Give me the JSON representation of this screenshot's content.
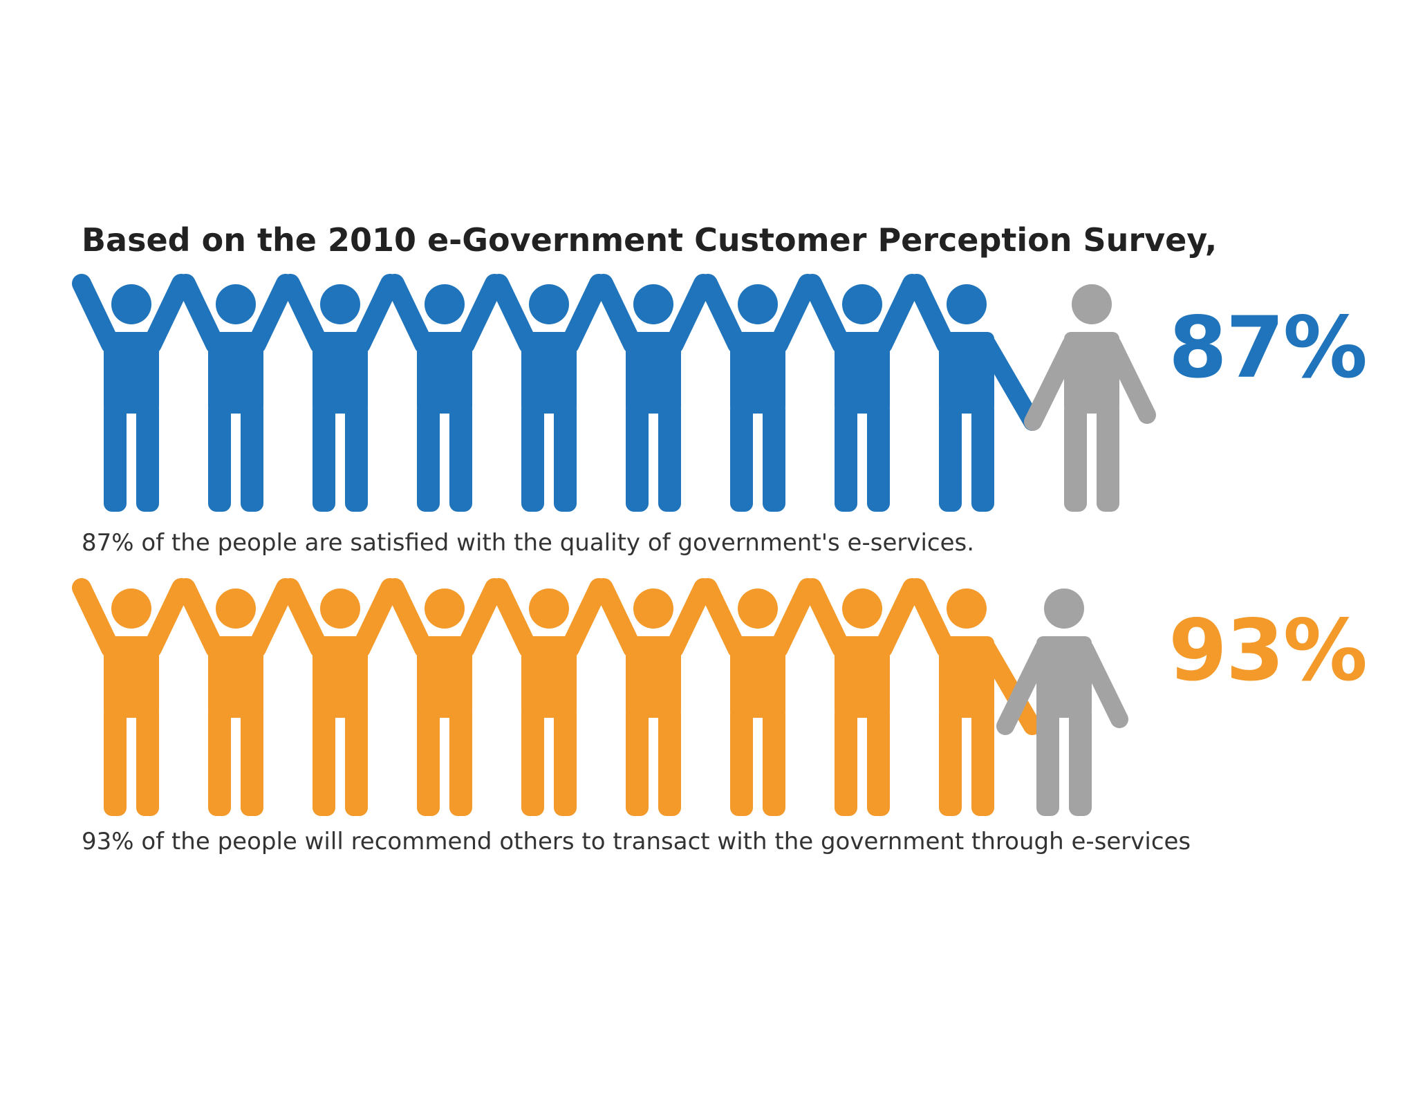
{
  "title": "Based on the 2010 e-Government Customer Perception Survey,",
  "colors": {
    "satisfied": "#1f74bc",
    "recommend": "#f39a2b",
    "remainder": "#a3a3a3",
    "text": "#222222"
  },
  "chart_data": [
    {
      "type": "pictogram",
      "metric": "satisfied",
      "value": 87,
      "unit": "%",
      "label": "87%",
      "icons_total": 10,
      "icons_filled": 9,
      "caption": "87% of the people are satisfied with the quality of government's e-services."
    },
    {
      "type": "pictogram",
      "metric": "recommend",
      "value": 93,
      "unit": "%",
      "label": "93%",
      "icons_total": 10,
      "icons_filled": 9,
      "caption": "93% of the people will recommend others to transact with the government through e-services"
    }
  ]
}
